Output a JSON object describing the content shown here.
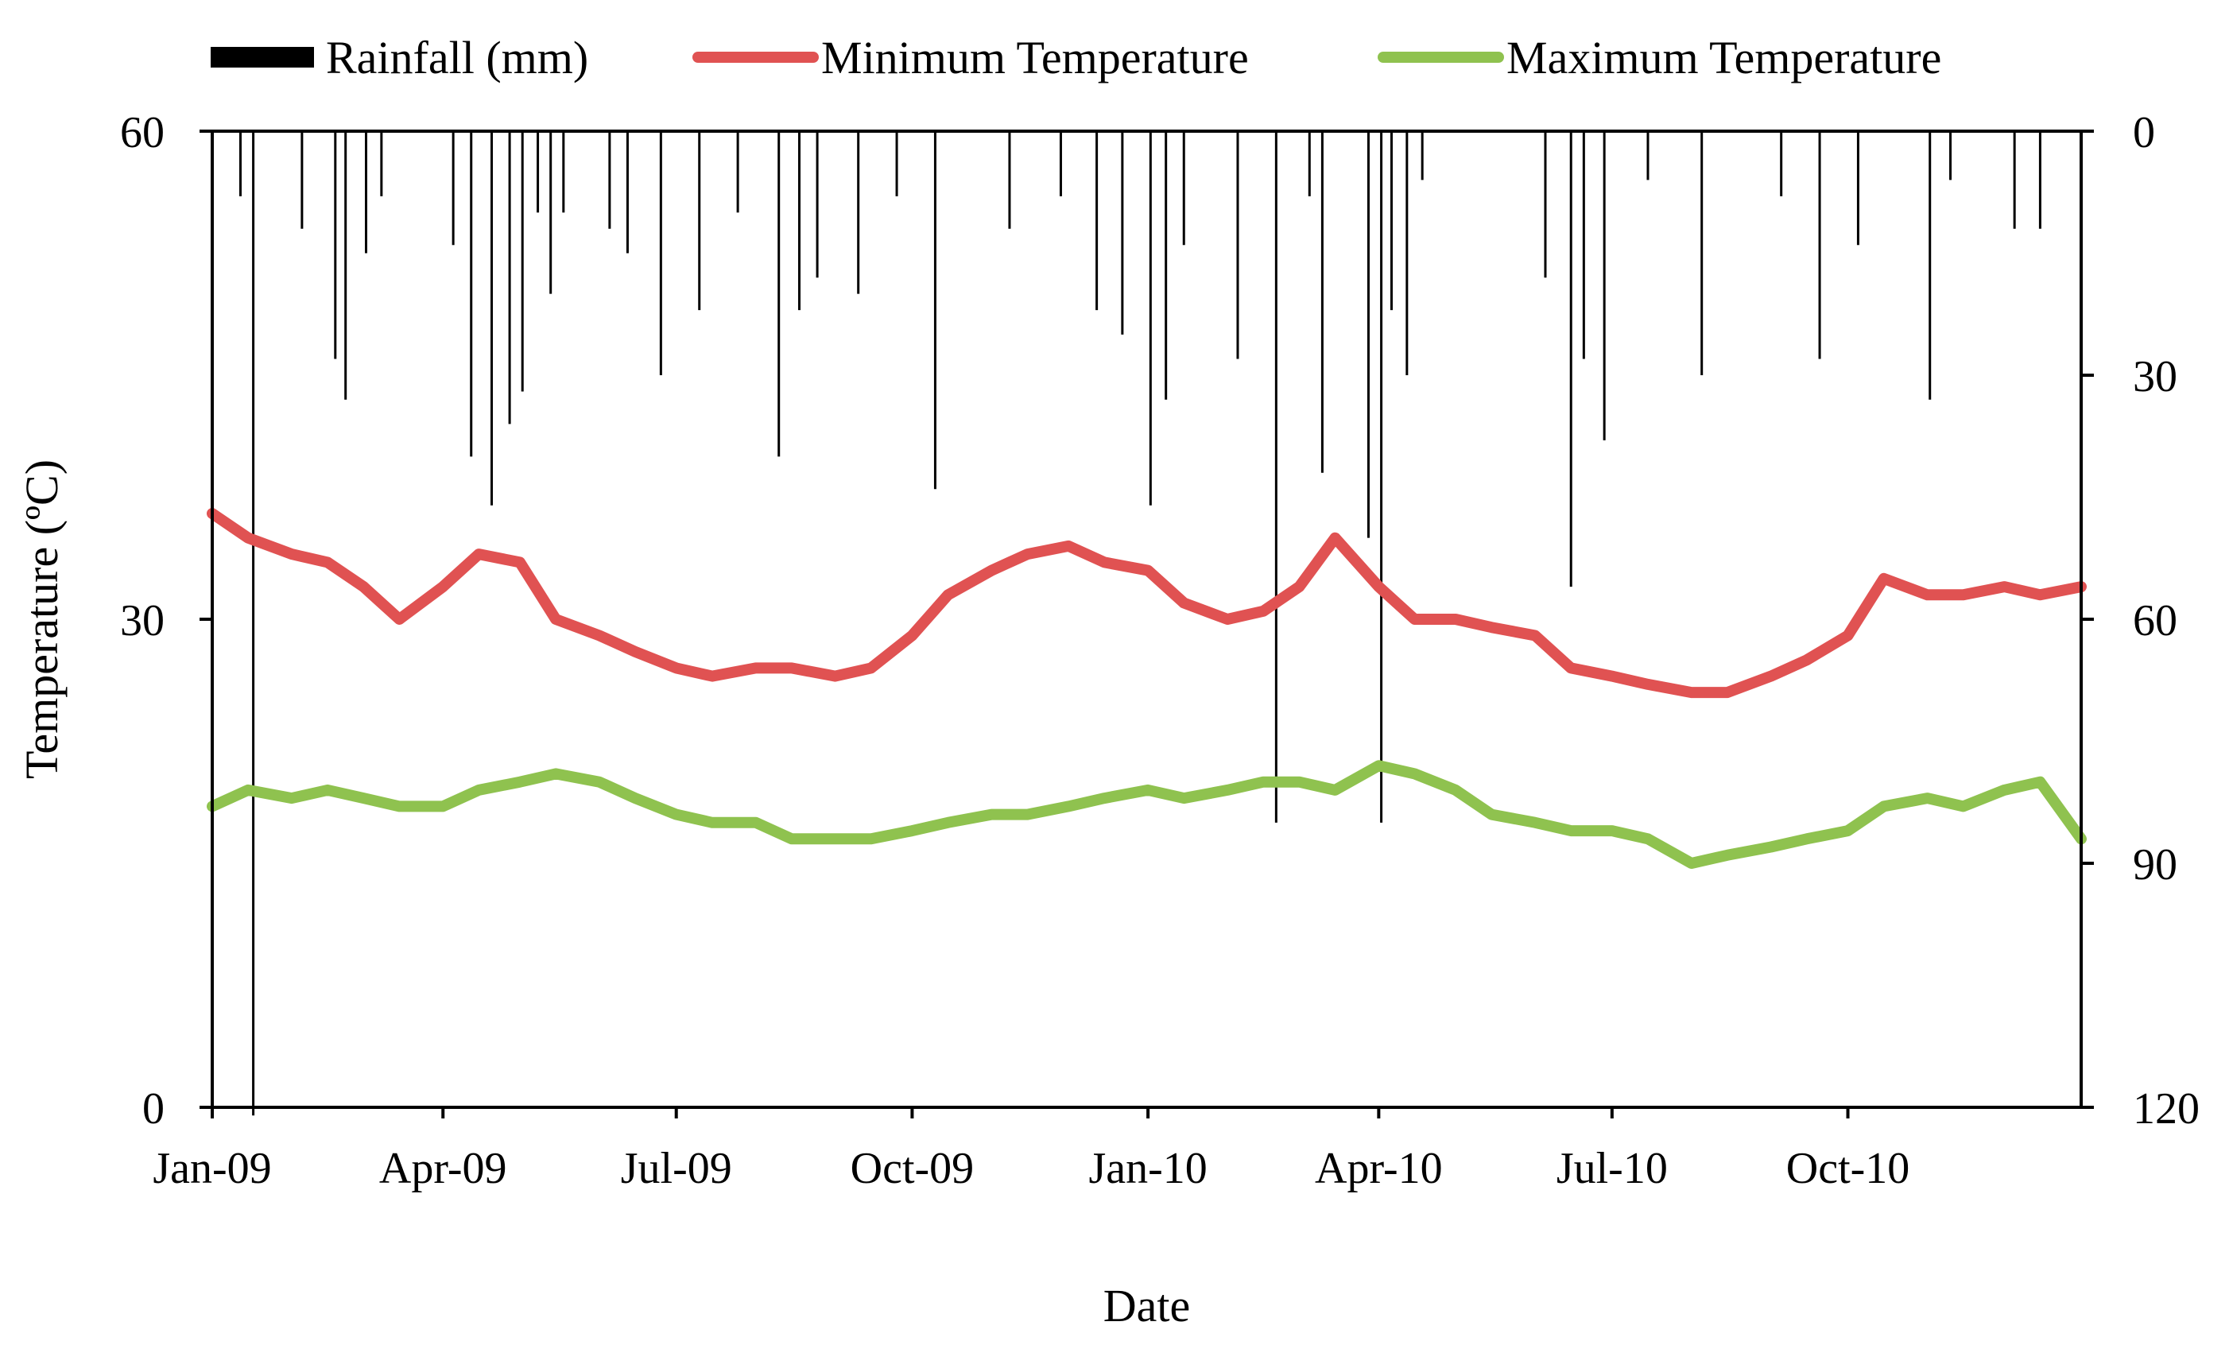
{
  "chart_data": {
    "type": "line",
    "xlabel": "Date",
    "ylabel": "Temperature (ºC)",
    "y2label": "",
    "x_tick_labels": [
      "Jan-09",
      "Apr-09",
      "Jul-09",
      "Oct-09",
      "Jan-10",
      "Apr-10",
      "Jul-10",
      "Oct-10"
    ],
    "x_tick_dates": [
      "2009-01-01",
      "2009-04-01",
      "2009-07-01",
      "2009-10-01",
      "2010-01-01",
      "2010-04-01",
      "2010-07-01",
      "2010-10-01"
    ],
    "x_range": [
      "2009-01-01",
      "2010-12-31"
    ],
    "ylim": [
      0,
      60
    ],
    "y_ticks": [
      0,
      30,
      60
    ],
    "y2lim": [
      0,
      120
    ],
    "y2_inverted": true,
    "y2_ticks": [
      0,
      30,
      60,
      90,
      120
    ],
    "legend": {
      "position": "top",
      "entries": [
        {
          "label": "Rainfall (mm)",
          "color": "#000000",
          "kind": "bar"
        },
        {
          "label": "Minimum Temperature",
          "color": "#e05252",
          "kind": "line"
        },
        {
          "label": "Maximum Temperature",
          "color": "#8fc24f",
          "kind": "line"
        }
      ]
    },
    "series": [
      {
        "name": "Minimum Temperature",
        "axis": "left",
        "color": "#e05252",
        "x": [
          "2009-01-01",
          "2009-01-15",
          "2009-02-01",
          "2009-02-15",
          "2009-03-01",
          "2009-03-15",
          "2009-04-01",
          "2009-04-15",
          "2009-05-01",
          "2009-05-15",
          "2009-06-01",
          "2009-06-15",
          "2009-07-01",
          "2009-07-15",
          "2009-08-01",
          "2009-08-15",
          "2009-09-01",
          "2009-09-15",
          "2009-10-01",
          "2009-10-15",
          "2009-11-01",
          "2009-11-15",
          "2009-12-01",
          "2009-12-15",
          "2010-01-01",
          "2010-01-15",
          "2010-02-01",
          "2010-02-15",
          "2010-03-01",
          "2010-03-15",
          "2010-04-01",
          "2010-04-15",
          "2010-05-01",
          "2010-05-15",
          "2010-06-01",
          "2010-06-15",
          "2010-07-01",
          "2010-07-15",
          "2010-08-01",
          "2010-08-15",
          "2010-09-01",
          "2010-09-15",
          "2010-10-01",
          "2010-10-15",
          "2010-11-01",
          "2010-11-15",
          "2010-12-01",
          "2010-12-15",
          "2010-12-31"
        ],
        "values": [
          36.5,
          35,
          34,
          33.5,
          32,
          30,
          32,
          34,
          33.5,
          30,
          29,
          28,
          27,
          26.5,
          27,
          27,
          26.5,
          27,
          29,
          31.5,
          33,
          34,
          34.5,
          33.5,
          33,
          31,
          30,
          30.5,
          32,
          35,
          32,
          30,
          30,
          29.5,
          29,
          27,
          26.5,
          26,
          25.5,
          25.5,
          26.5,
          27.5,
          29,
          32.5,
          31.5,
          31.5,
          32,
          31.5,
          32
        ]
      },
      {
        "name": "Maximum Temperature",
        "axis": "left",
        "color": "#8fc24f",
        "x": [
          "2009-01-01",
          "2009-01-15",
          "2009-02-01",
          "2009-02-15",
          "2009-03-01",
          "2009-03-15",
          "2009-04-01",
          "2009-04-15",
          "2009-05-01",
          "2009-05-15",
          "2009-06-01",
          "2009-06-15",
          "2009-07-01",
          "2009-07-15",
          "2009-08-01",
          "2009-08-15",
          "2009-09-01",
          "2009-09-15",
          "2009-10-01",
          "2009-10-15",
          "2009-11-01",
          "2009-11-15",
          "2009-12-01",
          "2009-12-15",
          "2010-01-01",
          "2010-01-15",
          "2010-02-01",
          "2010-02-15",
          "2010-03-01",
          "2010-03-15",
          "2010-04-01",
          "2010-04-15",
          "2010-05-01",
          "2010-05-15",
          "2010-06-01",
          "2010-06-15",
          "2010-07-01",
          "2010-07-15",
          "2010-08-01",
          "2010-08-15",
          "2010-09-01",
          "2010-09-15",
          "2010-10-01",
          "2010-10-15",
          "2010-11-01",
          "2010-11-15",
          "2010-12-01",
          "2010-12-15",
          "2010-12-31"
        ],
        "values": [
          18.5,
          19.5,
          19,
          19.5,
          19,
          18.5,
          18.5,
          19.5,
          20,
          20.5,
          20,
          19,
          18,
          17.5,
          17.5,
          16.5,
          16.5,
          16.5,
          17,
          17.5,
          18,
          18,
          18.5,
          19,
          19.5,
          19,
          19.5,
          20,
          20,
          19.5,
          21,
          20.5,
          19.5,
          18,
          17.5,
          17,
          17,
          16.5,
          15,
          15.5,
          16,
          16.5,
          17,
          18.5,
          19,
          18.5,
          19.5,
          20,
          16.5
        ]
      },
      {
        "name": "Rainfall (mm)",
        "axis": "right",
        "type": "bar",
        "color": "#000000",
        "x": [
          "2009-01-12",
          "2009-01-17",
          "2009-02-05",
          "2009-02-18",
          "2009-02-22",
          "2009-03-02",
          "2009-03-08",
          "2009-04-05",
          "2009-04-12",
          "2009-04-20",
          "2009-04-27",
          "2009-05-02",
          "2009-05-08",
          "2009-05-13",
          "2009-05-18",
          "2009-06-05",
          "2009-06-12",
          "2009-06-25",
          "2009-07-10",
          "2009-07-25",
          "2009-08-10",
          "2009-08-18",
          "2009-08-25",
          "2009-09-10",
          "2009-09-25",
          "2009-10-10",
          "2009-11-08",
          "2009-11-28",
          "2009-12-12",
          "2009-12-22",
          "2010-01-02",
          "2010-01-08",
          "2010-01-15",
          "2010-02-05",
          "2010-02-20",
          "2010-03-05",
          "2010-03-10",
          "2010-03-28",
          "2010-04-02",
          "2010-04-06",
          "2010-04-12",
          "2010-04-18",
          "2010-06-05",
          "2010-06-15",
          "2010-06-20",
          "2010-06-28",
          "2010-07-15",
          "2010-08-05",
          "2010-09-05",
          "2010-09-20",
          "2010-10-05",
          "2010-11-02",
          "2010-11-10",
          "2010-12-05",
          "2010-12-15"
        ],
        "values": [
          8,
          121,
          12,
          28,
          33,
          15,
          8,
          14,
          40,
          46,
          36,
          32,
          10,
          20,
          10,
          12,
          15,
          30,
          22,
          10,
          40,
          22,
          18,
          20,
          8,
          44,
          12,
          8,
          22,
          25,
          46,
          33,
          14,
          28,
          85,
          8,
          42,
          50,
          85,
          22,
          30,
          6,
          18,
          56,
          28,
          38,
          6,
          30,
          8,
          28,
          14,
          33,
          6,
          12,
          12
        ]
      }
    ]
  }
}
